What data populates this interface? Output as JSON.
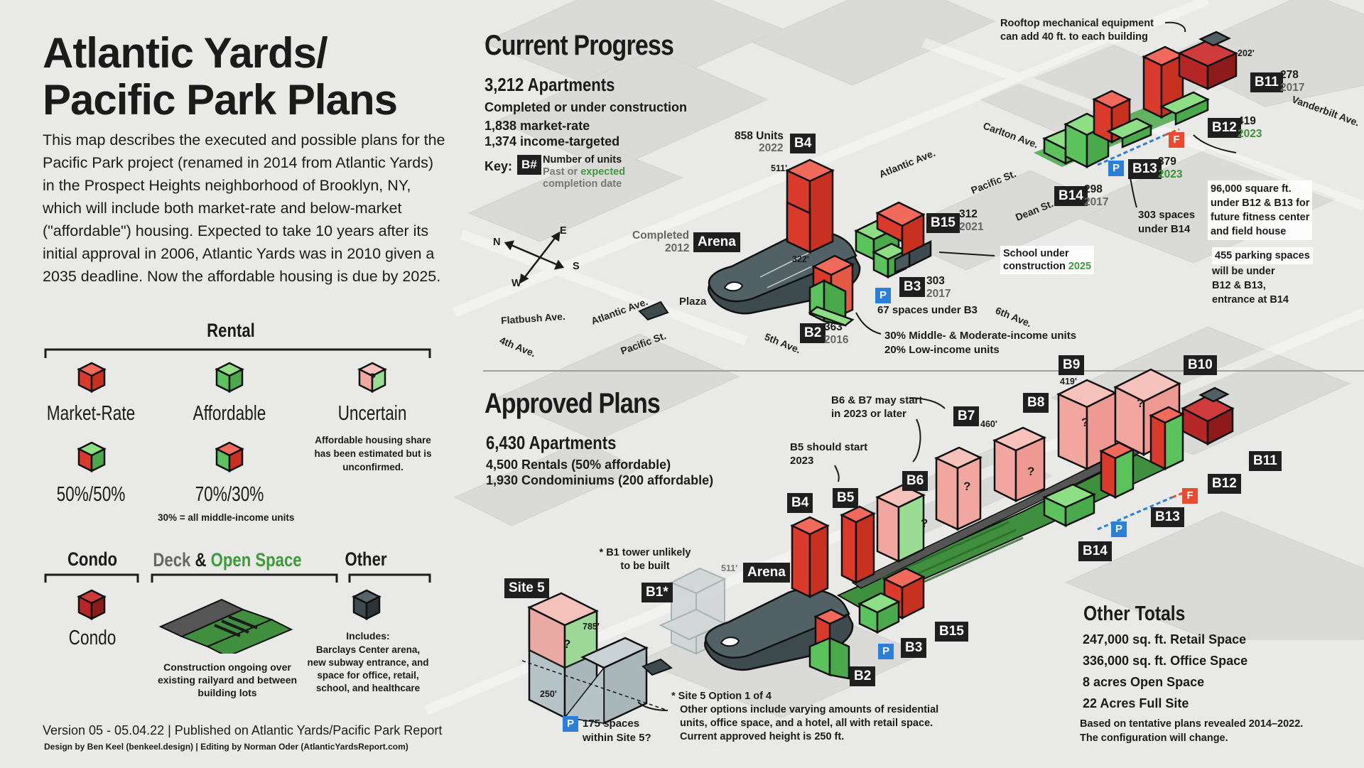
{
  "title_line1": "Atlantic Yards/",
  "title_line2": "Pacific Park Plans",
  "intro": "This map describes the executed and possible plans for the Pacific Park project (renamed in 2014 from Atlantic Yards) in the Prospect Heights neighborhood of Brooklyn, NY, which will include both market-rate and below-market (\"affordable\") housing. Expected to take 10 years after its initial approval in 2006, Atlantic Yards was in 2010 given a 2035 deadline. Now the affordable housing is due by 2025.",
  "legend": {
    "rental_heading": "Rental",
    "market_rate": "Market-Rate",
    "affordable": "Affordable",
    "uncertain": "Uncertain",
    "uncertain_note": "Affordable housing share has been estimated but is unconfirmed.",
    "fifty": "50%/50%",
    "seventy": "70%/30%",
    "seventy_note": "30% = all middle-income units",
    "condo_heading": "Condo",
    "condo": "Condo",
    "deck_word": "Deck",
    "amp": "&",
    "open_space_word": "Open Space",
    "deck_note": "Construction ongoing over existing railyard and between building lots",
    "other_heading": "Other",
    "other_note_head": "Includes:",
    "other_note": "Barclays Center arena, new subway entrance, and space for office, retail, school, and healthcare",
    "question_mark": "?"
  },
  "footer": {
    "version": "Version 05 - 05.04.22 | Published on Atlantic Yards/Pacific Park Report",
    "credits": "Design by Ben Keel (benkeel.design) | Editing by Norman Oder (AtlanticYardsReport.com)"
  },
  "current": {
    "heading": "Current Progress",
    "apartments": "3,212 Apartments",
    "line1": "Completed or under construction",
    "line2": "1,838 market-rate",
    "line3": "1,374 income-targeted",
    "key_label": "Key:",
    "key_badge": "B#",
    "key_units": "Number of units",
    "key_past": "Past or",
    "key_expected": "expected",
    "key_completion": "completion date",
    "compass": {
      "n": "N",
      "e": "E",
      "s": "S",
      "w": "W"
    },
    "streets": {
      "flatbush": "Flatbush Ave.",
      "atlantic1": "Atlantic Ave.",
      "atlantic2": "Atlantic Ave.",
      "pacific1": "Pacific St.",
      "pacific2": "Pacific St.",
      "fourth": "4th Ave.",
      "fifth": "5th Ave.",
      "sixth": "6th Ave.",
      "dean": "Dean St.",
      "carlton": "Carlton Ave.",
      "vanderbilt": "Vanderbilt Ave.",
      "plaza": "Plaza"
    },
    "arena_label": "Arena",
    "arena_completed": "Completed",
    "arena_year": "2012",
    "b4": {
      "label": "B4",
      "units": "858 Units",
      "year": "2022",
      "height": "511'"
    },
    "b2": {
      "label": "B2",
      "units": "363",
      "year": "2016",
      "height": "322'"
    },
    "b3": {
      "label": "B3",
      "units": "303",
      "year": "2017"
    },
    "b15": {
      "label": "B15",
      "units": "312",
      "year": "2021"
    },
    "b14": {
      "label": "B14",
      "units": "298",
      "year": "2017"
    },
    "b13": {
      "label": "B13",
      "units": "379",
      "year": "2023"
    },
    "b12": {
      "label": "B12",
      "units": "419",
      "year": "2023"
    },
    "b11": {
      "label": "B11",
      "units": "278",
      "year": "2017",
      "height": "202'"
    },
    "p_badge": "P",
    "f_badge": "F",
    "note_b3_parking": "67 spaces under B3",
    "note_b2_income1": "30% Middle- & Moderate-income units",
    "note_b2_income2": "20% Low-income units",
    "note_school1": "School under",
    "note_school2": "construction",
    "note_school_year": "2025",
    "note_rooftop1": "Rooftop mechanical equipment",
    "note_rooftop2": "can add 40 ft. to each building",
    "note_b14_parking1": "303 spaces",
    "note_b14_parking2": "under B14",
    "note_fitness1": "96,000 square ft.",
    "note_fitness2": "under B12 & B13 for",
    "note_fitness3": "future fitness center",
    "note_fitness4": "and field house",
    "note_455_1": "455 parking spaces",
    "note_455_2": "will be under",
    "note_455_3": "B12 & B13,",
    "note_455_4": "entrance at B14"
  },
  "approved": {
    "heading": "Approved Plans",
    "apartments": "6,430 Apartments",
    "line1": "4,500 Rentals (50% affordable)",
    "line2": "1,930 Condominiums (200 affordable)",
    "site5": "Site 5",
    "site5_h1": "785'",
    "site5_h2": "250'",
    "b1": "B1*",
    "b1_height": "511'",
    "b1_note1": "* B1 tower unlikely",
    "b1_note2": "to be built",
    "arena": "Arena",
    "b2": "B2",
    "b3": "B3",
    "b4": "B4",
    "b5": "B5",
    "b6": "B6",
    "b7": "B7",
    "b8": "B8",
    "b9": "B9",
    "b10": "B10",
    "b11": "B11",
    "b12": "B12",
    "b13": "B13",
    "b14": "B14",
    "b15": "B15",
    "b9_height": "419'",
    "b7_height": "460'",
    "p_badge": "P",
    "f_badge": "F",
    "note_b5_1": "B5 should start",
    "note_b5_2": "2023",
    "note_b67_1": "B6 & B7 may start",
    "note_b67_2": "in 2023 or later",
    "note_site5_parking1": "175 spaces",
    "note_site5_parking2": "within Site 5?",
    "note_site5_1": "* Site 5 Option 1 of 4",
    "note_site5_2": "Other options include varying amounts of residential",
    "note_site5_3": "units, office space, and a hotel, all with retail space.",
    "note_site5_4": "Current approved height is 250 ft."
  },
  "other_totals": {
    "heading": "Other Totals",
    "retail": "247,000 sq. ft. Retail Space",
    "office": "336,000 sq. ft. Office Space",
    "open": "8 acres Open Space",
    "full": "22 Acres Full Site",
    "note1": "Based on tentative plans revealed 2014–2022.",
    "note2": "The configuration will change."
  },
  "colors": {
    "market": "#e8473a",
    "affordable": "#5cc25c",
    "uncertain": "#f1a7a0",
    "condo": "#b52727",
    "other": "#3d4a4e",
    "deck": "#555555",
    "open_space": "#3f8f3f",
    "open_text": "#3e9a3a",
    "deck_text": "#666666"
  }
}
